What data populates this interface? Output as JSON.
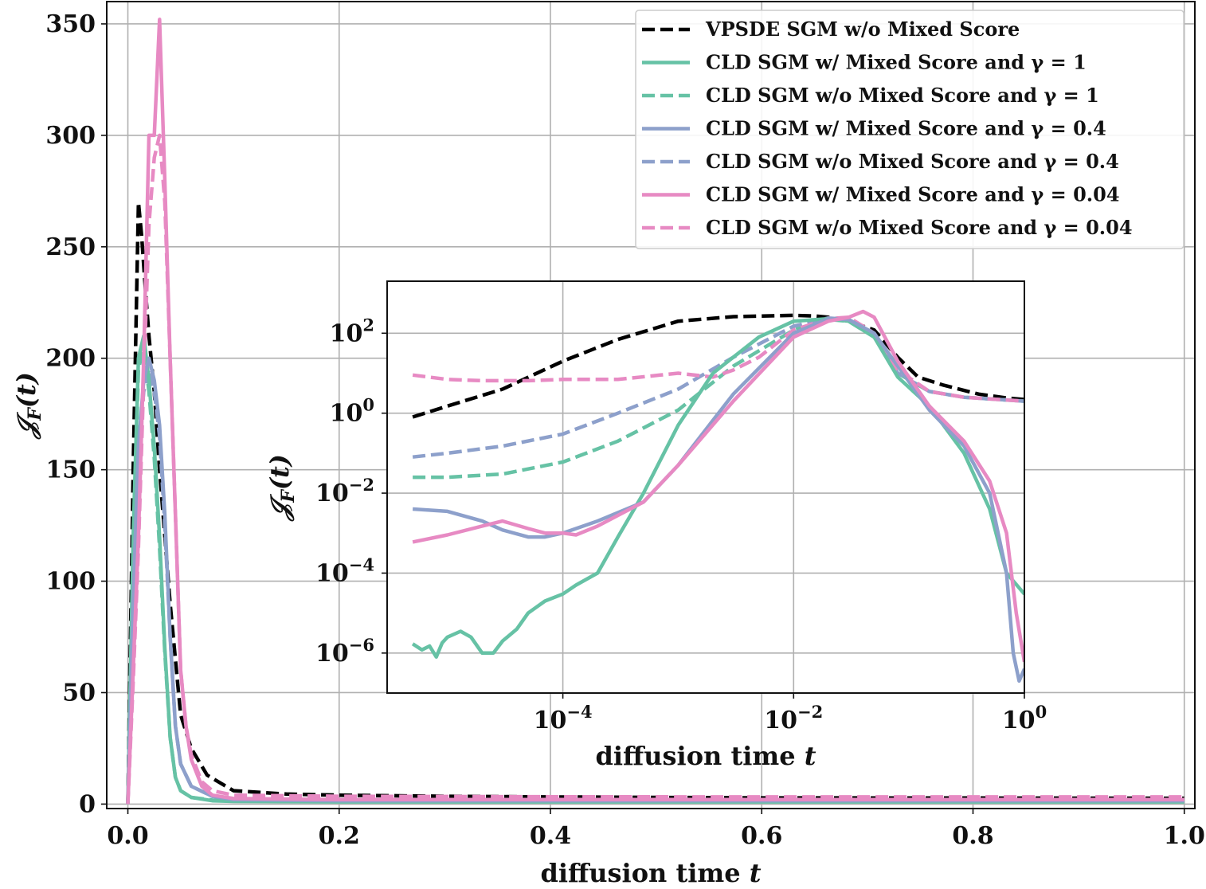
{
  "chart_data": [
    {
      "type": "line",
      "xlabel": "diffusion time t",
      "ylabel": "𝒥_F(t)",
      "xlim": [
        -0.02,
        1.01
      ],
      "ylim": [
        -2,
        360
      ],
      "xticks": [
        "0.0",
        "0.2",
        "0.4",
        "0.6",
        "0.8",
        "1.0"
      ],
      "xtick_values": [
        0.0,
        0.2,
        0.4,
        0.6,
        0.8,
        1.0
      ],
      "yticks": [
        "0",
        "50",
        "100",
        "150",
        "200",
        "250",
        "300",
        "350"
      ],
      "ytick_values": [
        0,
        50,
        100,
        150,
        200,
        250,
        300,
        350
      ],
      "grid": true,
      "legend_position": "top-right",
      "series": [
        {
          "name": "VPSDE SGM w/o Mixed Score",
          "color": "#000000",
          "dash": true,
          "x": [
            0,
            0.005,
            0.01,
            0.013,
            0.016,
            0.02,
            0.025,
            0.03,
            0.04,
            0.05,
            0.06,
            0.075,
            0.1,
            0.15,
            0.2,
            0.3,
            0.4,
            0.5,
            0.6,
            0.8,
            1.0
          ],
          "y": [
            0,
            150,
            270,
            255,
            235,
            210,
            185,
            150,
            90,
            40,
            25,
            13,
            6,
            4.5,
            4,
            3.5,
            3.2,
            3,
            2.8,
            2.7,
            2.6
          ]
        },
        {
          "name": "CLD SGM w/ Mixed Score and γ = 1",
          "color": "#66c2a5",
          "dash": false,
          "x": [
            0,
            0.005,
            0.01,
            0.015,
            0.02,
            0.025,
            0.03,
            0.035,
            0.04,
            0.045,
            0.05,
            0.06,
            0.08,
            0.1,
            0.2,
            0.4,
            0.6,
            0.8,
            1.0
          ],
          "y": [
            0,
            120,
            200,
            210,
            190,
            160,
            120,
            70,
            30,
            12,
            6,
            3,
            1.5,
            1.2,
            1,
            1,
            1,
            1,
            1
          ]
        },
        {
          "name": "CLD SGM w/o Mixed Score and γ = 1",
          "color": "#66c2a5",
          "dash": true,
          "x": [
            0,
            0.005,
            0.01,
            0.015,
            0.02,
            0.025,
            0.03,
            0.035,
            0.04,
            0.045,
            0.05,
            0.06,
            0.08,
            0.1,
            0.2,
            0.4,
            0.6,
            0.8,
            1.0
          ],
          "y": [
            0,
            115,
            195,
            205,
            185,
            155,
            115,
            68,
            30,
            12,
            6,
            3,
            1.8,
            1.5,
            1.5,
            1.5,
            1.5,
            1.5,
            1.5
          ]
        },
        {
          "name": "CLD SGM w/ Mixed Score and γ = 0.4",
          "color": "#8da0cb",
          "dash": false,
          "x": [
            0,
            0.005,
            0.01,
            0.015,
            0.02,
            0.025,
            0.03,
            0.035,
            0.04,
            0.045,
            0.05,
            0.06,
            0.08,
            0.1,
            0.2,
            0.4,
            0.6,
            0.8,
            1.0
          ],
          "y": [
            0,
            90,
            160,
            190,
            200,
            190,
            170,
            130,
            75,
            35,
            18,
            8,
            3.5,
            2,
            1.5,
            1.5,
            1.5,
            1.5,
            1.5
          ]
        },
        {
          "name": "CLD SGM w/o Mixed Score and γ = 0.4",
          "color": "#8da0cb",
          "dash": true,
          "x": [
            0,
            0.005,
            0.01,
            0.015,
            0.02,
            0.025,
            0.03,
            0.035,
            0.04,
            0.045,
            0.05,
            0.06,
            0.08,
            0.1,
            0.2,
            0.4,
            0.6,
            0.8,
            1.0
          ],
          "y": [
            0,
            85,
            155,
            185,
            195,
            185,
            165,
            125,
            75,
            35,
            18,
            8,
            3.5,
            2.2,
            2,
            2,
            2,
            2,
            2
          ]
        },
        {
          "name": "CLD SGM w/ Mixed Score and γ = 0.04",
          "color": "#e78ac3",
          "dash": false,
          "x": [
            0,
            0.005,
            0.01,
            0.015,
            0.02,
            0.025,
            0.03,
            0.035,
            0.04,
            0.045,
            0.05,
            0.055,
            0.06,
            0.07,
            0.08,
            0.1,
            0.2,
            0.4,
            0.6,
            0.8,
            1.0
          ],
          "y": [
            0,
            60,
            120,
            200,
            300,
            300,
            352,
            280,
            200,
            130,
            60,
            35,
            20,
            8,
            4,
            2.5,
            2,
            2,
            2,
            2,
            2
          ]
        },
        {
          "name": "CLD SGM w/o Mixed Score and γ = 0.04",
          "color": "#e78ac3",
          "dash": true,
          "x": [
            0,
            0.005,
            0.01,
            0.015,
            0.02,
            0.025,
            0.03,
            0.035,
            0.04,
            0.045,
            0.05,
            0.055,
            0.06,
            0.07,
            0.08,
            0.1,
            0.2,
            0.4,
            0.6,
            0.8,
            1.0
          ],
          "y": [
            0,
            55,
            115,
            190,
            260,
            290,
            300,
            270,
            200,
            130,
            60,
            35,
            22,
            10,
            6,
            4,
            3.5,
            3.3,
            3.2,
            3.2,
            3.2
          ]
        }
      ]
    },
    {
      "type": "line",
      "inset": true,
      "xlabel": "diffusion time t",
      "ylabel": "𝒥_F(t)",
      "xscale": "log",
      "yscale": "log",
      "xlim": [
        3e-06,
        1.0
      ],
      "ylim": [
        1e-07,
        2000
      ],
      "xticks": [
        {
          "base": "10",
          "exp": "−4"
        },
        {
          "base": "10",
          "exp": "−2"
        },
        {
          "base": "10",
          "exp": "0"
        }
      ],
      "xtick_values": [
        0.0001,
        0.01,
        1
      ],
      "yticks": [
        {
          "base": "10",
          "exp": "−6"
        },
        {
          "base": "10",
          "exp": "−4"
        },
        {
          "base": "10",
          "exp": "−2"
        },
        {
          "base": "10",
          "exp": "0"
        },
        {
          "base": "10",
          "exp": "2"
        }
      ],
      "ytick_values": [
        1e-06,
        0.0001,
        0.01,
        1,
        100
      ],
      "grid": true,
      "series": [
        {
          "name": "VPSDE SGM w/o Mixed Score",
          "color": "#000000",
          "dash": true,
          "x": [
            5e-06,
            1e-05,
            3e-05,
            0.0001,
            0.0003,
            0.001,
            0.003,
            0.01,
            0.015,
            0.02,
            0.03,
            0.05,
            0.08,
            0.12,
            0.2,
            0.4,
            0.7,
            1.0
          ],
          "y": [
            0.8,
            1.5,
            4,
            20,
            70,
            200,
            260,
            280,
            270,
            250,
            200,
            120,
            25,
            8,
            5,
            3,
            2.4,
            2.2
          ]
        },
        {
          "name": "CLD SGM w/ Mixed Score and γ = 1",
          "color": "#66c2a5",
          "dash": false,
          "x": [
            5e-06,
            6e-06,
            7e-06,
            8e-06,
            9e-06,
            1e-05,
            1.3e-05,
            1.6e-05,
            2e-05,
            2.5e-05,
            3e-05,
            4e-05,
            5e-05,
            7e-05,
            0.0001,
            0.00013,
            0.0002,
            0.0003,
            0.0005,
            0.001,
            0.002,
            0.005,
            0.01,
            0.02,
            0.03,
            0.05,
            0.08,
            0.15,
            0.3,
            0.5,
            0.7,
            1.0
          ],
          "y": [
            1.7e-06,
            1.2e-06,
            1.5e-06,
            8e-07,
            1.8e-06,
            2.5e-06,
            3.5e-06,
            2.5e-06,
            1e-06,
            1e-06,
            2e-06,
            4e-06,
            1e-05,
            2e-05,
            3e-05,
            5e-05,
            0.0001,
            0.0008,
            0.01,
            0.5,
            10,
            80,
            200,
            230,
            200,
            80,
            8,
            1.5,
            0.1,
            0.004,
            0.0001,
            3e-05
          ]
        },
        {
          "name": "CLD SGM w/o Mixed Score and γ = 1",
          "color": "#66c2a5",
          "dash": true,
          "x": [
            5e-06,
            1e-05,
            3e-05,
            0.0001,
            0.0003,
            0.001,
            0.003,
            0.01,
            0.02,
            0.03,
            0.05,
            0.08,
            0.15,
            0.3,
            0.6,
            1.0
          ],
          "y": [
            0.025,
            0.025,
            0.03,
            0.06,
            0.2,
            1.2,
            15,
            120,
            220,
            200,
            80,
            10,
            3.5,
            2.5,
            2.2,
            2.0
          ]
        },
        {
          "name": "CLD SGM w/ Mixed Score and γ = 0.4",
          "color": "#8da0cb",
          "dash": false,
          "x": [
            5e-06,
            1e-05,
            2e-05,
            3e-05,
            5e-05,
            7e-05,
            0.0001,
            0.0002,
            0.0005,
            0.001,
            0.003,
            0.01,
            0.02,
            0.03,
            0.05,
            0.08,
            0.15,
            0.3,
            0.5,
            0.7,
            0.8,
            0.9,
            1.0
          ],
          "y": [
            0.004,
            0.0035,
            0.002,
            0.0012,
            0.0008,
            0.0008,
            0.001,
            0.002,
            0.006,
            0.05,
            3,
            100,
            230,
            220,
            100,
            15,
            1.2,
            0.15,
            0.01,
            0.0001,
            1e-06,
            2e-07,
            4e-07
          ]
        },
        {
          "name": "CLD SGM w/o Mixed Score and γ = 0.4",
          "color": "#8da0cb",
          "dash": true,
          "x": [
            5e-06,
            1e-05,
            3e-05,
            0.0001,
            0.0003,
            0.001,
            0.003,
            0.01,
            0.02,
            0.03,
            0.05,
            0.08,
            0.15,
            0.3,
            0.6,
            1.0
          ],
          "y": [
            0.08,
            0.1,
            0.15,
            0.3,
            1,
            4,
            25,
            150,
            240,
            220,
            90,
            10,
            3.5,
            2.5,
            2.2,
            2.0
          ]
        },
        {
          "name": "CLD SGM w/ Mixed Score and γ = 0.04",
          "color": "#e78ac3",
          "dash": false,
          "x": [
            5e-06,
            1e-05,
            2e-05,
            3e-05,
            5e-05,
            7e-05,
            0.0001,
            0.00013,
            0.0002,
            0.0005,
            0.001,
            0.003,
            0.01,
            0.02,
            0.03,
            0.04,
            0.05,
            0.08,
            0.15,
            0.3,
            0.5,
            0.7,
            0.85,
            1.0
          ],
          "y": [
            0.0006,
            0.0009,
            0.0015,
            0.002,
            0.0013,
            0.001,
            0.001,
            0.0009,
            0.0015,
            0.006,
            0.05,
            2,
            80,
            200,
            250,
            350,
            250,
            20,
            1.5,
            0.2,
            0.02,
            0.001,
            1e-05,
            6e-07
          ]
        },
        {
          "name": "CLD SGM w/o Mixed Score and γ = 0.04",
          "color": "#e78ac3",
          "dash": true,
          "x": [
            5e-06,
            1e-05,
            2e-05,
            5e-05,
            0.0001,
            0.0003,
            0.0007,
            0.001,
            0.002,
            0.003,
            0.005,
            0.01,
            0.02,
            0.03,
            0.05,
            0.08,
            0.15,
            0.3,
            0.6,
            1.0
          ],
          "y": [
            9,
            7,
            6.5,
            6.5,
            7,
            7,
            9,
            10,
            8,
            12,
            25,
            120,
            230,
            250,
            100,
            12,
            3.5,
            2.5,
            2.2,
            2.0
          ]
        }
      ]
    }
  ]
}
